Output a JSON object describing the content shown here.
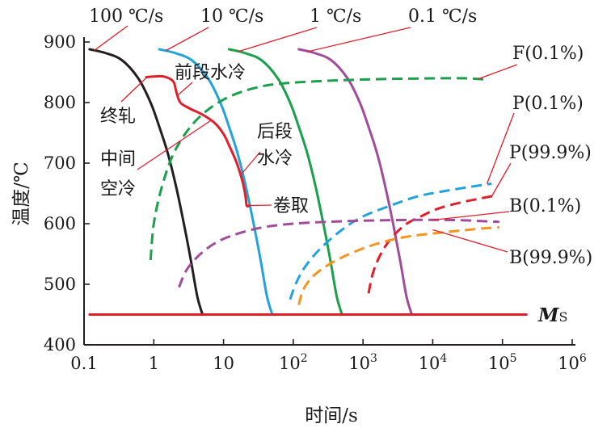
{
  "chart_data": {
    "type": "line",
    "title": "",
    "xlabel": "时间/s",
    "ylabel": "温度/℃",
    "x_scale": "log",
    "xlim": [
      0.1,
      1000000
    ],
    "ylim": [
      400,
      900
    ],
    "x_ticks": [
      {
        "value": 0.1,
        "base": "0.1",
        "exp": ""
      },
      {
        "value": 1,
        "base": "1",
        "exp": ""
      },
      {
        "value": 10,
        "base": "10",
        "exp": ""
      },
      {
        "value": 100,
        "base": "10",
        "exp": "2"
      },
      {
        "value": 1000,
        "base": "10",
        "exp": "3"
      },
      {
        "value": 10000,
        "base": "10",
        "exp": "4"
      },
      {
        "value": 100000,
        "base": "10",
        "exp": "5"
      },
      {
        "value": 1000000,
        "base": "10",
        "exp": "6"
      }
    ],
    "y_ticks": [
      {
        "value": 400,
        "label": "400"
      },
      {
        "value": 500,
        "label": "500"
      },
      {
        "value": 600,
        "label": "600"
      },
      {
        "value": 700,
        "label": "700"
      },
      {
        "value": 800,
        "label": "800"
      },
      {
        "value": 900,
        "label": "900"
      }
    ],
    "series": [
      {
        "id": "rate-100",
        "name": "100 ℃/s",
        "color": "#231f20",
        "dash": false,
        "x": [
          0.12,
          0.2,
          0.35,
          0.6,
          0.9,
          1.2,
          1.6,
          2.1,
          2.7,
          3.4,
          4.2,
          5.0
        ],
        "y": [
          888,
          882,
          870,
          840,
          800,
          760,
          715,
          660,
          600,
          540,
          480,
          450
        ]
      },
      {
        "id": "rate-10",
        "name": "10 ℃/s",
        "color": "#22a3dc",
        "dash": false,
        "x": [
          1.2,
          2.0,
          3.5,
          6,
          9,
          12,
          16,
          21,
          27,
          34,
          42,
          50
        ],
        "y": [
          888,
          882,
          870,
          840,
          800,
          760,
          715,
          660,
          600,
          540,
          480,
          450
        ]
      },
      {
        "id": "rate-1",
        "name": "1 ℃/s",
        "color": "#1aa04a",
        "dash": false,
        "x": [
          12,
          20,
          35,
          60,
          90,
          120,
          160,
          210,
          270,
          340,
          420,
          500
        ],
        "y": [
          888,
          882,
          870,
          840,
          800,
          760,
          715,
          660,
          600,
          540,
          480,
          450
        ]
      },
      {
        "id": "rate-01",
        "name": "0.1 ℃/s",
        "color": "#a14c9a",
        "dash": false,
        "x": [
          120,
          200,
          350,
          600,
          900,
          1200,
          1600,
          2100,
          2700,
          3400,
          4200,
          5000
        ],
        "y": [
          888,
          882,
          870,
          840,
          800,
          760,
          715,
          660,
          600,
          540,
          480,
          450
        ]
      },
      {
        "id": "process",
        "name": "终轧-中间空冷-后段水冷-卷取",
        "color": "#e01f2b",
        "dash": false,
        "x": [
          0.78,
          1.0,
          1.4,
          1.9,
          2.1,
          2.4,
          3.3,
          5.0,
          7.5,
          10.0,
          12.5,
          15.5,
          18.5,
          20.5,
          21.5,
          23.5
        ],
        "y": [
          842,
          843,
          843,
          835,
          818,
          800,
          790,
          780,
          766,
          748,
          725,
          700,
          672,
          648,
          630,
          630
        ]
      },
      {
        "id": "F-0.1",
        "name": "F(0.1%)",
        "color": "#1aa04a",
        "dash": true,
        "x": [
          0.9,
          1.0,
          1.3,
          2.0,
          4.0,
          10,
          30,
          100,
          1000,
          10000,
          30000,
          60000
        ],
        "y": [
          540,
          600,
          660,
          720,
          770,
          805,
          825,
          833,
          838,
          840,
          840,
          838
        ]
      },
      {
        "id": "P-0.1",
        "name": "P(0.1%)",
        "color": "#22a3dc",
        "dash": true,
        "x": [
          90,
          110,
          150,
          250,
          500,
          1000,
          2500,
          6000,
          15000,
          40000,
          70000
        ],
        "y": [
          475,
          502,
          530,
          560,
          590,
          612,
          630,
          645,
          654,
          662,
          666
        ]
      },
      {
        "id": "P-99.9",
        "name": "P(99.9%)",
        "color": "#e01f2b",
        "dash": true,
        "x": [
          1200,
          1400,
          1800,
          2500,
          4000,
          7000,
          12000,
          25000,
          50000,
          75000
        ],
        "y": [
          485,
          520,
          550,
          575,
          598,
          613,
          625,
          635,
          642,
          646
        ]
      },
      {
        "id": "B-0.1",
        "name": "B(0.1%)",
        "color": "#a14c9a",
        "dash": true,
        "x": [
          2.3,
          3.0,
          5.0,
          10,
          30,
          100,
          500,
          3000,
          20000,
          90000
        ],
        "y": [
          495,
          525,
          553,
          575,
          592,
          600,
          604,
          606,
          606,
          603
        ]
      },
      {
        "id": "B-99.9",
        "name": "B(99.9%)",
        "color": "#f7941d",
        "dash": true,
        "x": [
          120,
          140,
          200,
          350,
          700,
          1500,
          4000,
          15000,
          50000,
          90000
        ],
        "y": [
          466,
          492,
          515,
          535,
          552,
          566,
          578,
          586,
          592,
          594
        ]
      },
      {
        "id": "Ms",
        "name": "Ms",
        "color": "#e01f2b",
        "dash": false,
        "x": [
          0.12,
          220000
        ],
        "y": [
          450,
          450
        ]
      }
    ],
    "annotations": {
      "rate_100": "100 ℃/s",
      "rate_10": "10 ℃/s",
      "rate_1": "1 ℃/s",
      "rate_01": "0.1 ℃/s",
      "finish_rolling": "终轧",
      "front_water_cooling": "前段水冷",
      "intermediate_air_cooling_1": "中间",
      "intermediate_air_cooling_2": "空冷",
      "rear_water_cooling_1": "后段",
      "rear_water_cooling_2": "水冷",
      "coiling": "卷取",
      "F_01": "F(0.1%)",
      "P_01": "P(0.1%)",
      "P_999": "P(99.9%)",
      "B_01": "B(0.1%)",
      "B_999": "B(99.9%)",
      "ms_letter": "M",
      "ms_subscript": "S"
    }
  }
}
